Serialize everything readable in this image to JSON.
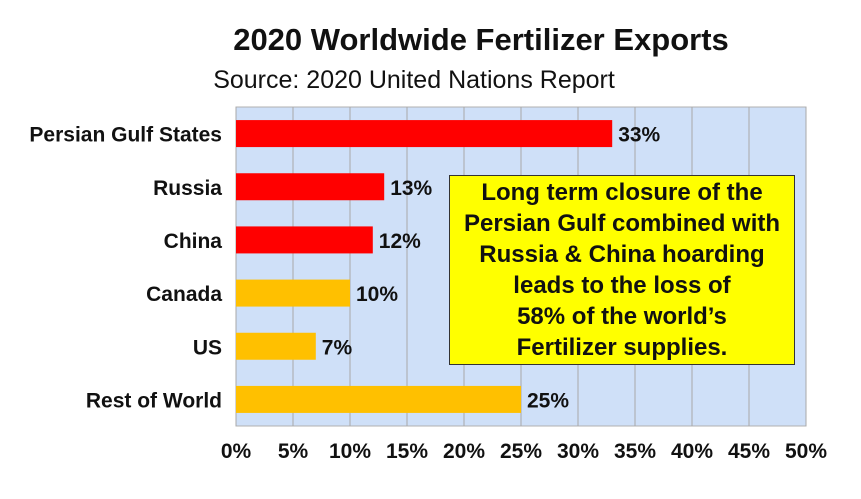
{
  "chart_data": {
    "type": "bar",
    "orientation": "horizontal",
    "title": "2020 Worldwide Fertilizer Exports",
    "subtitle": "Source: 2020 United Nations Report",
    "categories": [
      "Persian Gulf States",
      "Russia",
      "China",
      "Canada",
      "US",
      "Rest of World"
    ],
    "values": [
      33,
      13,
      12,
      10,
      7,
      25
    ],
    "value_labels": [
      "33%",
      "13%",
      "12%",
      "10%",
      "7%",
      "25%"
    ],
    "bar_colors": [
      "#ff0000",
      "#ff0000",
      "#ff0000",
      "#ffc000",
      "#ffc000",
      "#ffc000"
    ],
    "xlim": [
      0,
      50
    ],
    "x_ticks": [
      0,
      5,
      10,
      15,
      20,
      25,
      30,
      35,
      40,
      45,
      50
    ],
    "x_tick_labels": [
      "0%",
      "5%",
      "10%",
      "15%",
      "20%",
      "25%",
      "30%",
      "35%",
      "40%",
      "45%",
      "50%"
    ],
    "xlabel": "",
    "ylabel": "",
    "grid": true,
    "plot_background": "#cfe0f8",
    "legend": "none",
    "annotation": "Long term closure of the\nPersian Gulf combined with\nRussia & China hoarding\nleads to the loss of\n58% of the world’s\nFertilizer supplies.",
    "annotation_background": "#ffff00"
  }
}
